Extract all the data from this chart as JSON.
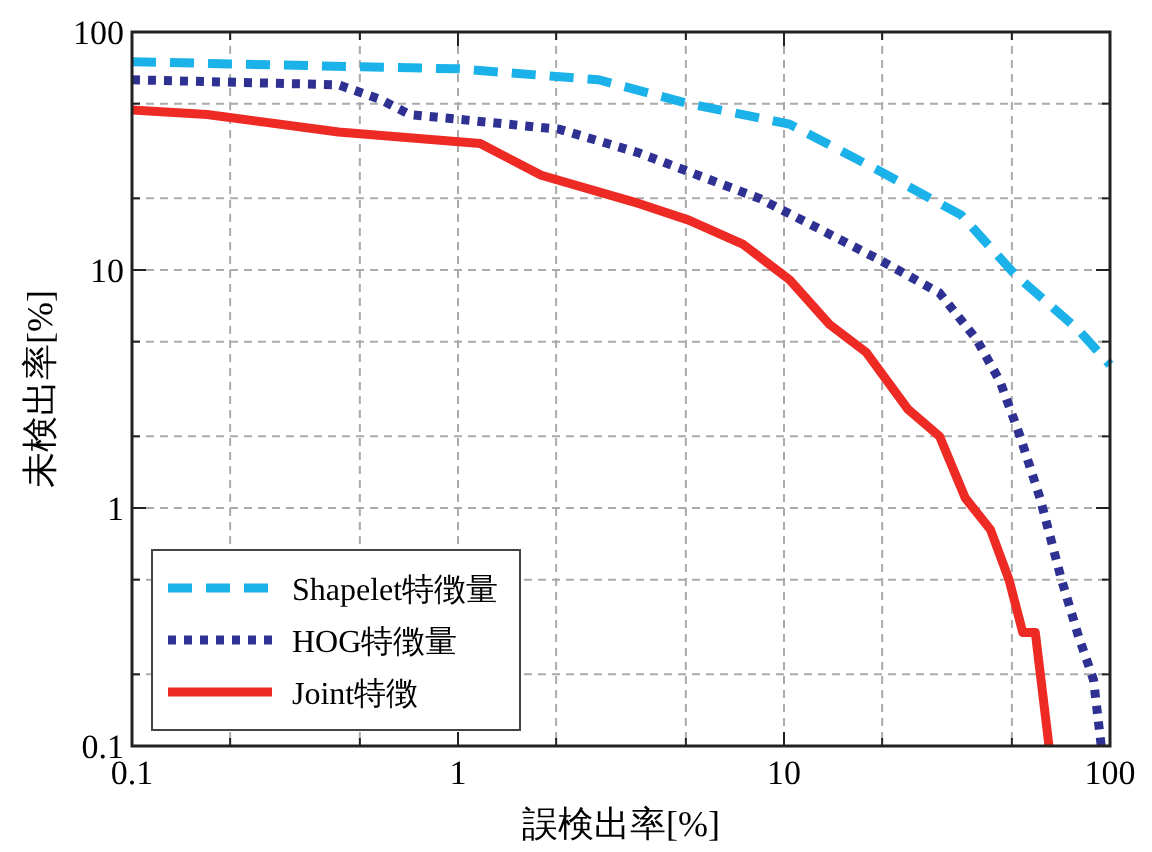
{
  "chart_data": {
    "type": "line",
    "xlabel": "誤検出率[%]",
    "ylabel": "未検出率[%]",
    "log": "xy",
    "grid": true,
    "legend": "bottom left",
    "xlim": [
      0.1,
      100
    ],
    "ylim": [
      0.1,
      100
    ],
    "xticks": [
      0.1,
      {
        "value": 0.2,
        "label": null
      },
      {
        "value": 0.5,
        "label": null
      },
      1,
      {
        "value": 2,
        "label": null
      },
      {
        "value": 5,
        "label": null
      },
      10,
      {
        "value": 20,
        "label": null
      },
      {
        "value": 50,
        "label": null
      },
      100
    ],
    "yticks": [
      0.1,
      {
        "value": 0.2,
        "label": null
      },
      {
        "value": 0.5,
        "label": null
      },
      1,
      {
        "value": 2,
        "label": null
      },
      {
        "value": 5,
        "label": null
      },
      10,
      {
        "value": 20,
        "label": null
      },
      {
        "value": 50,
        "label": null
      },
      100
    ],
    "series": [
      {
        "name": "Shapelet特徴量",
        "color": "#1ab2e8",
        "line_style": "dashed",
        "x": [
          0.1,
          1.0,
          2.7,
          5.1,
          10.4,
          19.7,
          35,
          51,
          80,
          100
        ],
        "values": [
          75,
          70,
          63,
          50,
          41,
          26,
          17,
          9.6,
          5.6,
          4.0
        ]
      },
      {
        "name": "HOG特徴量",
        "color": "#2e3192",
        "line_style": "dotted",
        "x": [
          0.1,
          0.43,
          0.58,
          0.71,
          1.0,
          2.05,
          3.6,
          5.9,
          8.4,
          12,
          19.7,
          30,
          39,
          46,
          53,
          61,
          71,
          80,
          89,
          94
        ],
        "values": [
          63,
          60,
          52,
          45,
          43,
          39,
          31,
          24,
          20,
          15.6,
          11,
          8,
          5.1,
          3.4,
          2.0,
          1.1,
          0.5,
          0.29,
          0.19,
          0.1
        ]
      },
      {
        "name": "Joint特徴",
        "color": "#ee2a24",
        "line_style": "solid",
        "x": [
          0.1,
          0.17,
          0.43,
          1.17,
          1.8,
          3.6,
          5.1,
          7.5,
          10.4,
          13.8,
          17.9,
          24,
          30,
          36,
          43,
          49,
          54,
          59,
          65
        ],
        "values": [
          47,
          45,
          38,
          34,
          25,
          19,
          16.2,
          12.8,
          9.1,
          5.9,
          4.5,
          2.6,
          2.0,
          1.1,
          0.81,
          0.5,
          0.3,
          0.3,
          0.1
        ]
      }
    ]
  }
}
